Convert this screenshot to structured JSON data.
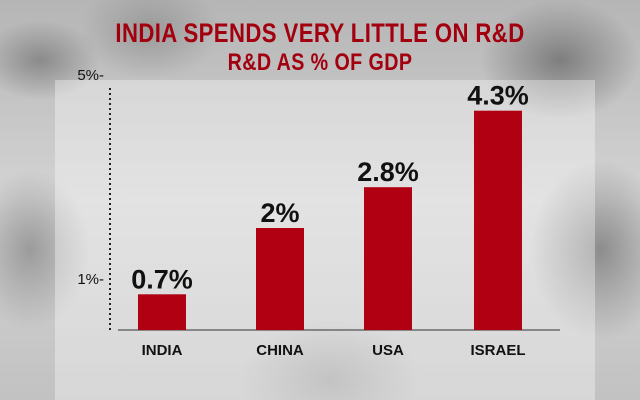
{
  "chart_data": {
    "type": "bar",
    "title": "INDIA SPENDS VERY LITTLE ON R&D",
    "subtitle": "R&D AS % OF GDP",
    "categories": [
      "INDIA",
      "CHINA",
      "USA",
      "ISRAEL"
    ],
    "values": [
      0.7,
      2,
      2.8,
      4.3
    ],
    "value_labels": [
      "0.7%",
      "2%",
      "2.8%",
      "4.3%"
    ],
    "yticks": [
      {
        "value": 5,
        "label": "5%-"
      },
      {
        "value": 1,
        "label": "1%-"
      }
    ],
    "ylim": [
      0,
      5
    ],
    "grid": false,
    "colors": {
      "bar": "#b00012",
      "title": "#a3000f"
    }
  }
}
